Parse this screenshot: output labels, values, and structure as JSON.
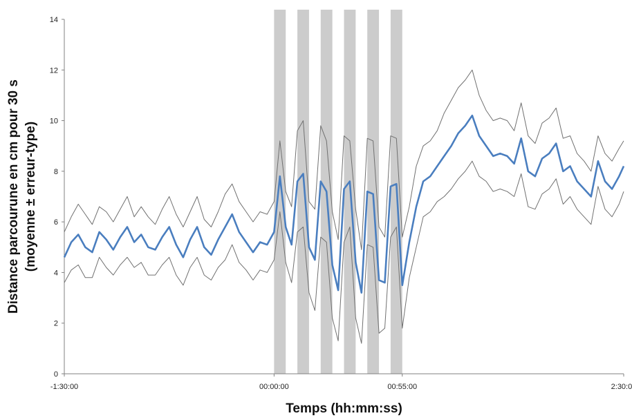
{
  "chart_data": {
    "type": "line",
    "title": "",
    "xlabel": "Temps (hh:mm:ss)",
    "ylabel": [
      "Distance parcourune en cm pour 30 s",
      "(moyenne ± erreur-type)"
    ],
    "x_unit": "minutes",
    "xlim": [
      -90,
      150
    ],
    "ylim": [
      0,
      14
    ],
    "grid": false,
    "legend": "none",
    "x_ticks": [
      {
        "value": -90,
        "label": "-1:30:00"
      },
      {
        "value": 0,
        "label": "00:00:00"
      },
      {
        "value": 55,
        "label": "00:55:00"
      },
      {
        "value": 150,
        "label": "2:30:00"
      }
    ],
    "y_ticks": [
      {
        "value": 0,
        "label": "0"
      },
      {
        "value": 2,
        "label": "2"
      },
      {
        "value": 4,
        "label": "4"
      },
      {
        "value": 6,
        "label": "6"
      },
      {
        "value": 8,
        "label": "8"
      },
      {
        "value": 10,
        "label": "10"
      },
      {
        "value": 12,
        "label": "12"
      },
      {
        "value": 14,
        "label": "14"
      }
    ],
    "shaded_intervals": [
      [
        0,
        5
      ],
      [
        10,
        15
      ],
      [
        20,
        25
      ],
      [
        30,
        35
      ],
      [
        40,
        45
      ],
      [
        50,
        55
      ]
    ],
    "series": [
      {
        "role": "mean",
        "color": "#4a7ebf",
        "x": [
          -90,
          -87,
          -84,
          -81,
          -78,
          -75,
          -72,
          -69,
          -66,
          -63,
          -60,
          -57,
          -54,
          -51,
          -48,
          -45,
          -42,
          -39,
          -36,
          -33,
          -30,
          -27,
          -24,
          -21,
          -18,
          -15,
          -12,
          -9,
          -6,
          -3,
          0,
          2.5,
          5,
          7.5,
          10,
          12.5,
          15,
          17.5,
          20,
          22.5,
          25,
          27.5,
          30,
          32.5,
          35,
          37.5,
          40,
          42.5,
          45,
          47.5,
          50,
          52.5,
          55,
          58,
          61,
          64,
          67,
          70,
          73,
          76,
          79,
          82,
          85,
          88,
          91,
          94,
          97,
          100,
          103,
          106,
          109,
          112,
          115,
          118,
          121,
          124,
          127,
          130,
          133,
          136,
          139,
          142,
          145,
          148,
          150
        ],
        "y": [
          4.6,
          5.2,
          5.5,
          5.0,
          4.8,
          5.6,
          5.3,
          4.9,
          5.4,
          5.8,
          5.2,
          5.5,
          5.0,
          4.9,
          5.4,
          5.8,
          5.1,
          4.6,
          5.3,
          5.8,
          5.0,
          4.7,
          5.3,
          5.8,
          6.3,
          5.6,
          5.2,
          4.8,
          5.2,
          5.1,
          5.6,
          7.8,
          5.8,
          5.1,
          7.6,
          7.9,
          5.0,
          4.5,
          7.6,
          7.2,
          4.3,
          3.3,
          7.3,
          7.6,
          4.4,
          3.2,
          7.2,
          7.1,
          3.7,
          3.6,
          7.4,
          7.5,
          3.5,
          5.2,
          6.6,
          7.6,
          7.8,
          8.2,
          8.6,
          9.0,
          9.5,
          9.8,
          10.2,
          9.4,
          9.0,
          8.6,
          8.7,
          8.6,
          8.3,
          9.3,
          8.0,
          7.8,
          8.5,
          8.7,
          9.1,
          8.0,
          8.2,
          7.6,
          7.3,
          7.0,
          8.4,
          7.6,
          7.3,
          7.8,
          8.2
        ]
      },
      {
        "role": "mean + standard error",
        "color": "#707070",
        "x": [
          -90,
          -87,
          -84,
          -81,
          -78,
          -75,
          -72,
          -69,
          -66,
          -63,
          -60,
          -57,
          -54,
          -51,
          -48,
          -45,
          -42,
          -39,
          -36,
          -33,
          -30,
          -27,
          -24,
          -21,
          -18,
          -15,
          -12,
          -9,
          -6,
          -3,
          0,
          2.5,
          5,
          7.5,
          10,
          12.5,
          15,
          17.5,
          20,
          22.5,
          25,
          27.5,
          30,
          32.5,
          35,
          37.5,
          40,
          42.5,
          45,
          47.5,
          50,
          52.5,
          55,
          58,
          61,
          64,
          67,
          70,
          73,
          76,
          79,
          82,
          85,
          88,
          91,
          94,
          97,
          100,
          103,
          106,
          109,
          112,
          115,
          118,
          121,
          124,
          127,
          130,
          133,
          136,
          139,
          142,
          145,
          148,
          150
        ],
        "y": [
          5.6,
          6.2,
          6.7,
          6.3,
          5.9,
          6.6,
          6.4,
          6.0,
          6.5,
          7.0,
          6.2,
          6.6,
          6.2,
          5.9,
          6.5,
          7.0,
          6.3,
          5.8,
          6.4,
          7.0,
          6.1,
          5.8,
          6.4,
          7.1,
          7.5,
          6.8,
          6.4,
          6.0,
          6.4,
          6.3,
          6.8,
          9.2,
          7.2,
          6.6,
          9.6,
          10.0,
          6.8,
          6.5,
          9.8,
          9.2,
          6.4,
          5.3,
          9.4,
          9.2,
          6.5,
          4.9,
          9.3,
          9.2,
          5.8,
          5.4,
          9.4,
          9.3,
          5.4,
          6.6,
          8.2,
          9.0,
          9.2,
          9.6,
          10.3,
          10.8,
          11.3,
          11.6,
          12.0,
          11.0,
          10.4,
          10.0,
          10.1,
          10.0,
          9.6,
          10.7,
          9.4,
          9.1,
          9.9,
          10.1,
          10.5,
          9.3,
          9.4,
          8.7,
          8.4,
          8.0,
          9.4,
          8.7,
          8.4,
          8.9,
          9.2
        ]
      },
      {
        "role": "mean - standard error",
        "color": "#707070",
        "x": [
          -90,
          -87,
          -84,
          -81,
          -78,
          -75,
          -72,
          -69,
          -66,
          -63,
          -60,
          -57,
          -54,
          -51,
          -48,
          -45,
          -42,
          -39,
          -36,
          -33,
          -30,
          -27,
          -24,
          -21,
          -18,
          -15,
          -12,
          -9,
          -6,
          -3,
          0,
          2.5,
          5,
          7.5,
          10,
          12.5,
          15,
          17.5,
          20,
          22.5,
          25,
          27.5,
          30,
          32.5,
          35,
          37.5,
          40,
          42.5,
          45,
          47.5,
          50,
          52.5,
          55,
          58,
          61,
          64,
          67,
          70,
          73,
          76,
          79,
          82,
          85,
          88,
          91,
          94,
          97,
          100,
          103,
          106,
          109,
          112,
          115,
          118,
          121,
          124,
          127,
          130,
          133,
          136,
          139,
          142,
          145,
          148,
          150
        ],
        "y": [
          3.6,
          4.1,
          4.3,
          3.8,
          3.8,
          4.6,
          4.2,
          3.9,
          4.3,
          4.6,
          4.2,
          4.4,
          3.9,
          3.9,
          4.3,
          4.6,
          3.9,
          3.5,
          4.2,
          4.6,
          3.9,
          3.7,
          4.2,
          4.5,
          5.1,
          4.4,
          4.1,
          3.7,
          4.1,
          4.0,
          4.5,
          6.4,
          4.4,
          3.6,
          5.6,
          5.8,
          3.2,
          2.5,
          5.4,
          5.2,
          2.2,
          1.3,
          5.2,
          5.8,
          2.2,
          1.2,
          5.1,
          5.0,
          1.6,
          1.8,
          5.4,
          5.8,
          1.8,
          3.8,
          5.0,
          6.2,
          6.4,
          6.8,
          7.0,
          7.3,
          7.7,
          8.0,
          8.4,
          7.8,
          7.6,
          7.2,
          7.3,
          7.2,
          7.0,
          7.9,
          6.6,
          6.5,
          7.1,
          7.3,
          7.7,
          6.7,
          7.0,
          6.5,
          6.2,
          5.9,
          7.4,
          6.5,
          6.2,
          6.7,
          7.2
        ]
      }
    ]
  }
}
